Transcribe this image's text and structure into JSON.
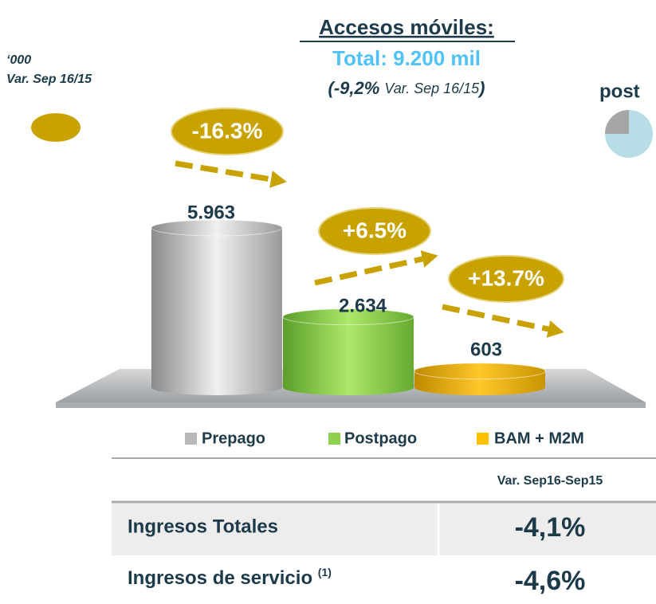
{
  "chart_data": {
    "type": "cylinder-bar",
    "title": "Accesos móviles:",
    "subtitle": "Total: 9.200 mil",
    "note": [
      "(-9,2%",
      "Var. Sep 16/15",
      ")"
    ],
    "unit_label": "‘000",
    "unit_note": "Var. Sep 16/15",
    "side_label": "post",
    "categories": [
      "Prepago",
      "Postpago",
      "BAM + M2M"
    ],
    "values": [
      5963,
      2634,
      603
    ],
    "value_labels": [
      "5.963",
      "2.634",
      "603"
    ],
    "colors": [
      "#b8b8b8",
      "#8fd14f",
      "#ffc000"
    ],
    "annotations": [
      "-16.3%",
      "+6.5%",
      "+13.7%"
    ]
  },
  "table": {
    "header": "Var. Sep16-Sep15",
    "rows": [
      [
        "Ingresos Totales",
        "-4,1%"
      ],
      [
        "Ingresos de servicio",
        "-4,6%"
      ]
    ],
    "footnote_mark": "(1)"
  }
}
